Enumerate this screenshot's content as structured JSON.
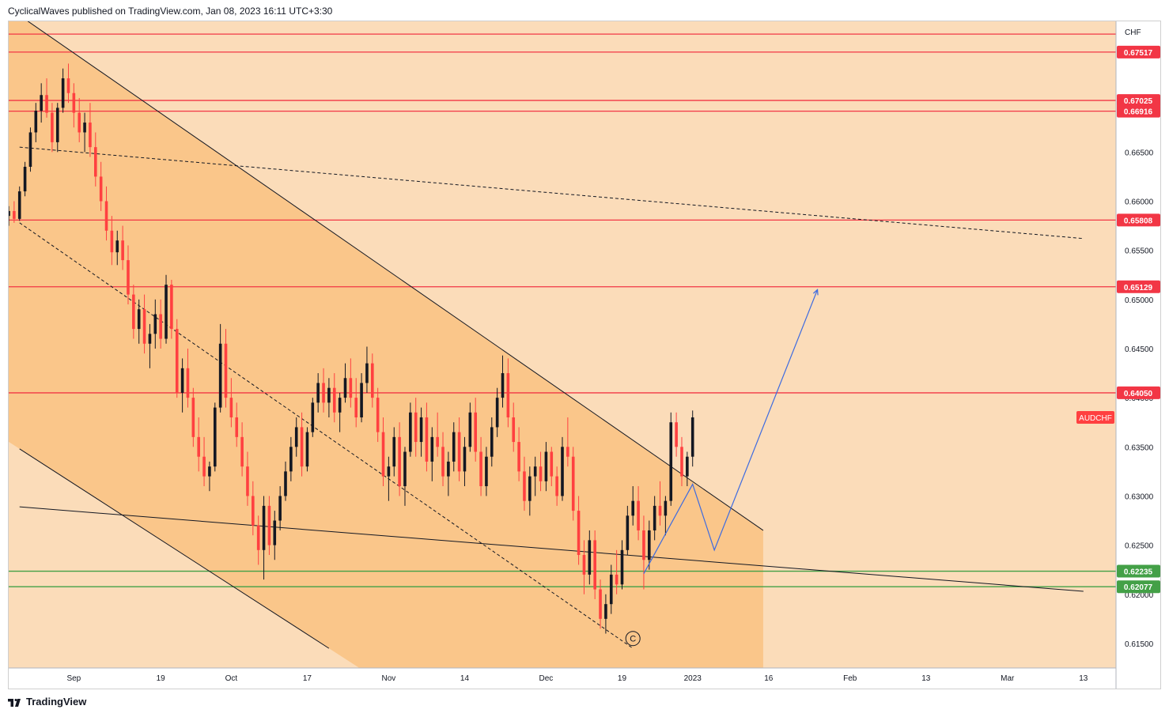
{
  "header": {
    "text": "CyclicalWaves published on TradingView.com, Jan 08, 2023 16:11 UTC+3:30"
  },
  "footer": {
    "brand": "TradingView"
  },
  "chart_data": {
    "type": "candlestick",
    "symbol": "AUDCHF",
    "currency": "CHF",
    "colors": {
      "background": "#fbdcb9",
      "channel_fill": "#fac68a",
      "up": "#131722",
      "down": "#ff4040",
      "resistance": "#f23645",
      "support": "#43a047",
      "projection": "#3d6be0",
      "trendline": "#131722"
    },
    "y_axis": {
      "range": [
        0.6125,
        0.6783
      ],
      "ticks": [
        0.615,
        0.62,
        0.625,
        0.63,
        0.635,
        0.64,
        0.645,
        0.65,
        0.655,
        0.66,
        0.665
      ],
      "tick_labels": [
        "0.61500",
        "0.62000",
        "0.62500",
        "0.63000",
        "0.63500",
        "0.64000",
        "0.64500",
        "0.65000",
        "0.65500",
        "0.66000",
        "0.66500"
      ]
    },
    "x_axis": {
      "tick_labels": [
        "Sep",
        "19",
        "Oct",
        "17",
        "Nov",
        "14",
        "Dec",
        "19",
        "2023",
        "16",
        "Feb",
        "13",
        "Mar",
        "13"
      ],
      "tick_index": [
        0,
        16,
        29,
        43,
        58,
        72,
        87,
        101,
        114,
        128,
        143,
        157,
        172,
        186
      ]
    },
    "horizontal_levels": [
      {
        "value": 0.677,
        "label": "",
        "color": "resistance"
      },
      {
        "value": 0.67517,
        "label": "0.67517",
        "color": "resistance"
      },
      {
        "value": 0.67025,
        "label": "0.67025",
        "color": "resistance"
      },
      {
        "value": 0.66916,
        "label": "0.66916",
        "color": "resistance"
      },
      {
        "value": 0.65808,
        "label": "0.65808",
        "color": "resistance"
      },
      {
        "value": 0.65129,
        "label": "0.65129",
        "color": "resistance"
      },
      {
        "value": 0.6405,
        "label": "0.64050",
        "color": "resistance"
      },
      {
        "value": 0.62235,
        "label": "0.62235",
        "color": "support"
      },
      {
        "value": 0.62077,
        "label": "0.62077",
        "color": "support"
      }
    ],
    "price_badge": {
      "label": "AUDCHF",
      "value": 0.638
    },
    "channel": {
      "upper": [
        [
          -10,
          0.6789
        ],
        [
          127,
          0.6265
        ]
      ],
      "lower": [
        [
          -10,
          0.6348
        ],
        [
          47,
          0.6145
        ]
      ],
      "fill_until": 127
    },
    "lines": [
      {
        "from": [
          -10,
          0.6655
        ],
        "to": [
          186,
          0.6562
        ],
        "style": "dashed"
      },
      {
        "from": [
          -10,
          0.6578
        ],
        "to": [
          103,
          0.6145
        ],
        "style": "dashed"
      },
      {
        "from": [
          -10,
          0.6289
        ],
        "to": [
          186,
          0.6203
        ],
        "style": "solid"
      }
    ],
    "projection_path": [
      [
        105,
        0.6221
      ],
      [
        114,
        0.6312
      ],
      [
        118,
        0.6245
      ],
      [
        137,
        0.651
      ]
    ],
    "wave_label": {
      "text": "C",
      "index": 103,
      "value": 0.6155
    },
    "candles": {
      "x_start": -12,
      "ohlc": [
        [
          0.6585,
          0.6595,
          0.6575,
          0.659
        ],
        [
          0.659,
          0.66,
          0.6578,
          0.6582
        ],
        [
          0.6582,
          0.6615,
          0.658,
          0.661
        ],
        [
          0.661,
          0.664,
          0.6605,
          0.6635
        ],
        [
          0.6635,
          0.6675,
          0.663,
          0.667
        ],
        [
          0.667,
          0.67,
          0.666,
          0.6692
        ],
        [
          0.6692,
          0.672,
          0.668,
          0.6708
        ],
        [
          0.6708,
          0.6725,
          0.6685,
          0.669
        ],
        [
          0.669,
          0.67,
          0.665,
          0.666
        ],
        [
          0.666,
          0.67,
          0.665,
          0.6695
        ],
        [
          0.6695,
          0.6735,
          0.669,
          0.6725
        ],
        [
          0.6725,
          0.674,
          0.67,
          0.671
        ],
        [
          0.671,
          0.672,
          0.6675,
          0.669
        ],
        [
          0.669,
          0.6705,
          0.666,
          0.667
        ],
        [
          0.667,
          0.669,
          0.665,
          0.668
        ],
        [
          0.668,
          0.67,
          0.6645,
          0.6655
        ],
        [
          0.6655,
          0.667,
          0.6615,
          0.6625
        ],
        [
          0.6625,
          0.664,
          0.659,
          0.66
        ],
        [
          0.66,
          0.6615,
          0.656,
          0.657
        ],
        [
          0.657,
          0.6585,
          0.6535,
          0.6548
        ],
        [
          0.6548,
          0.657,
          0.6535,
          0.656
        ],
        [
          0.656,
          0.6575,
          0.653,
          0.654
        ],
        [
          0.654,
          0.6555,
          0.6495,
          0.6505
        ],
        [
          0.6505,
          0.6515,
          0.646,
          0.647
        ],
        [
          0.647,
          0.65,
          0.6455,
          0.649
        ],
        [
          0.649,
          0.6505,
          0.6445,
          0.6455
        ],
        [
          0.6455,
          0.6475,
          0.643,
          0.6465
        ],
        [
          0.6465,
          0.65,
          0.645,
          0.6485
        ],
        [
          0.6485,
          0.65,
          0.645,
          0.646
        ],
        [
          0.646,
          0.6525,
          0.6455,
          0.6515
        ],
        [
          0.6515,
          0.652,
          0.646,
          0.647
        ],
        [
          0.647,
          0.648,
          0.64,
          0.6405
        ],
        [
          0.6405,
          0.644,
          0.6385,
          0.643
        ],
        [
          0.643,
          0.645,
          0.639,
          0.64
        ],
        [
          0.64,
          0.641,
          0.635,
          0.636
        ],
        [
          0.636,
          0.638,
          0.6325,
          0.634
        ],
        [
          0.634,
          0.636,
          0.631,
          0.632
        ],
        [
          0.632,
          0.6335,
          0.6305,
          0.633
        ],
        [
          0.633,
          0.6395,
          0.6325,
          0.639
        ],
        [
          0.639,
          0.6475,
          0.6385,
          0.6455
        ],
        [
          0.6455,
          0.647,
          0.639,
          0.64
        ],
        [
          0.64,
          0.642,
          0.637,
          0.638
        ],
        [
          0.638,
          0.6395,
          0.635,
          0.636
        ],
        [
          0.636,
          0.6375,
          0.632,
          0.633
        ],
        [
          0.633,
          0.6345,
          0.629,
          0.63
        ],
        [
          0.63,
          0.6315,
          0.626,
          0.627
        ],
        [
          0.627,
          0.628,
          0.623,
          0.6245
        ],
        [
          0.6245,
          0.63,
          0.6215,
          0.629
        ],
        [
          0.629,
          0.63,
          0.624,
          0.625
        ],
        [
          0.625,
          0.6285,
          0.6235,
          0.6275
        ],
        [
          0.6275,
          0.631,
          0.6265,
          0.63
        ],
        [
          0.63,
          0.6335,
          0.6295,
          0.6325
        ],
        [
          0.6325,
          0.636,
          0.6315,
          0.635
        ],
        [
          0.635,
          0.638,
          0.634,
          0.637
        ],
        [
          0.637,
          0.6385,
          0.632,
          0.633
        ],
        [
          0.633,
          0.637,
          0.6325,
          0.6365
        ],
        [
          0.6365,
          0.64,
          0.636,
          0.6395
        ],
        [
          0.6395,
          0.6425,
          0.6385,
          0.6415
        ],
        [
          0.6415,
          0.643,
          0.6385,
          0.6395
        ],
        [
          0.6395,
          0.642,
          0.638,
          0.641
        ],
        [
          0.641,
          0.6425,
          0.6375,
          0.6385
        ],
        [
          0.6385,
          0.6405,
          0.6365,
          0.64
        ],
        [
          0.64,
          0.6435,
          0.6395,
          0.642
        ],
        [
          0.642,
          0.644,
          0.639,
          0.64
        ],
        [
          0.64,
          0.642,
          0.637,
          0.638
        ],
        [
          0.638,
          0.6425,
          0.6375,
          0.6415
        ],
        [
          0.6415,
          0.6452,
          0.6405,
          0.6435
        ],
        [
          0.6435,
          0.6445,
          0.639,
          0.64
        ],
        [
          0.64,
          0.641,
          0.6355,
          0.6365
        ],
        [
          0.6365,
          0.638,
          0.631,
          0.632
        ],
        [
          0.632,
          0.634,
          0.6295,
          0.633
        ],
        [
          0.633,
          0.637,
          0.632,
          0.636
        ],
        [
          0.636,
          0.6375,
          0.63,
          0.631
        ],
        [
          0.631,
          0.635,
          0.629,
          0.6345
        ],
        [
          0.6345,
          0.6395,
          0.634,
          0.6385
        ],
        [
          0.6385,
          0.64,
          0.634,
          0.6355
        ],
        [
          0.6355,
          0.639,
          0.634,
          0.638
        ],
        [
          0.638,
          0.6395,
          0.6325,
          0.6335
        ],
        [
          0.6335,
          0.637,
          0.6315,
          0.636
        ],
        [
          0.636,
          0.6385,
          0.634,
          0.635
        ],
        [
          0.635,
          0.6365,
          0.631,
          0.632
        ],
        [
          0.632,
          0.6345,
          0.63,
          0.6335
        ],
        [
          0.6335,
          0.6375,
          0.6325,
          0.6365
        ],
        [
          0.6365,
          0.638,
          0.6315,
          0.6325
        ],
        [
          0.6325,
          0.636,
          0.631,
          0.635
        ],
        [
          0.635,
          0.6395,
          0.6345,
          0.6385
        ],
        [
          0.6385,
          0.64,
          0.6335,
          0.6345
        ],
        [
          0.6345,
          0.636,
          0.63,
          0.631
        ],
        [
          0.631,
          0.635,
          0.63,
          0.634
        ],
        [
          0.634,
          0.638,
          0.633,
          0.637
        ],
        [
          0.637,
          0.641,
          0.636,
          0.64
        ],
        [
          0.64,
          0.6443,
          0.639,
          0.6425
        ],
        [
          0.6425,
          0.644,
          0.637,
          0.638
        ],
        [
          0.638,
          0.6395,
          0.6345,
          0.6355
        ],
        [
          0.6355,
          0.637,
          0.6315,
          0.6325
        ],
        [
          0.6325,
          0.634,
          0.6285,
          0.6295
        ],
        [
          0.6295,
          0.633,
          0.628,
          0.632
        ],
        [
          0.632,
          0.634,
          0.63,
          0.633
        ],
        [
          0.633,
          0.6345,
          0.6305,
          0.6315
        ],
        [
          0.6315,
          0.6355,
          0.6305,
          0.6345
        ],
        [
          0.6345,
          0.635,
          0.631,
          0.632
        ],
        [
          0.632,
          0.633,
          0.629,
          0.63
        ],
        [
          0.63,
          0.636,
          0.6295,
          0.635
        ],
        [
          0.635,
          0.638,
          0.633,
          0.634
        ],
        [
          0.634,
          0.635,
          0.6275,
          0.6285
        ],
        [
          0.6285,
          0.63,
          0.623,
          0.624
        ],
        [
          0.624,
          0.6255,
          0.62,
          0.622
        ],
        [
          0.622,
          0.6265,
          0.621,
          0.6255
        ],
        [
          0.6255,
          0.6265,
          0.6195,
          0.6205
        ],
        [
          0.6205,
          0.6215,
          0.6165,
          0.6175
        ],
        [
          0.6175,
          0.62,
          0.616,
          0.619
        ],
        [
          0.619,
          0.623,
          0.618,
          0.622
        ],
        [
          0.622,
          0.6245,
          0.62,
          0.621
        ],
        [
          0.621,
          0.6255,
          0.6205,
          0.6245
        ],
        [
          0.6245,
          0.629,
          0.624,
          0.628
        ],
        [
          0.628,
          0.631,
          0.627,
          0.6295
        ],
        [
          0.6295,
          0.631,
          0.6255,
          0.6265
        ],
        [
          0.6265,
          0.628,
          0.6205,
          0.6235
        ],
        [
          0.6235,
          0.6275,
          0.6225,
          0.6265
        ],
        [
          0.6265,
          0.63,
          0.6255,
          0.629
        ],
        [
          0.629,
          0.6315,
          0.627,
          0.628
        ],
        [
          0.628,
          0.63,
          0.626,
          0.6295
        ],
        [
          0.6295,
          0.6385,
          0.629,
          0.6375
        ],
        [
          0.6375,
          0.6385,
          0.634,
          0.635
        ],
        [
          0.635,
          0.636,
          0.631,
          0.632
        ],
        [
          0.632,
          0.6345,
          0.631,
          0.634
        ],
        [
          0.634,
          0.6387,
          0.633,
          0.638
        ]
      ]
    }
  }
}
